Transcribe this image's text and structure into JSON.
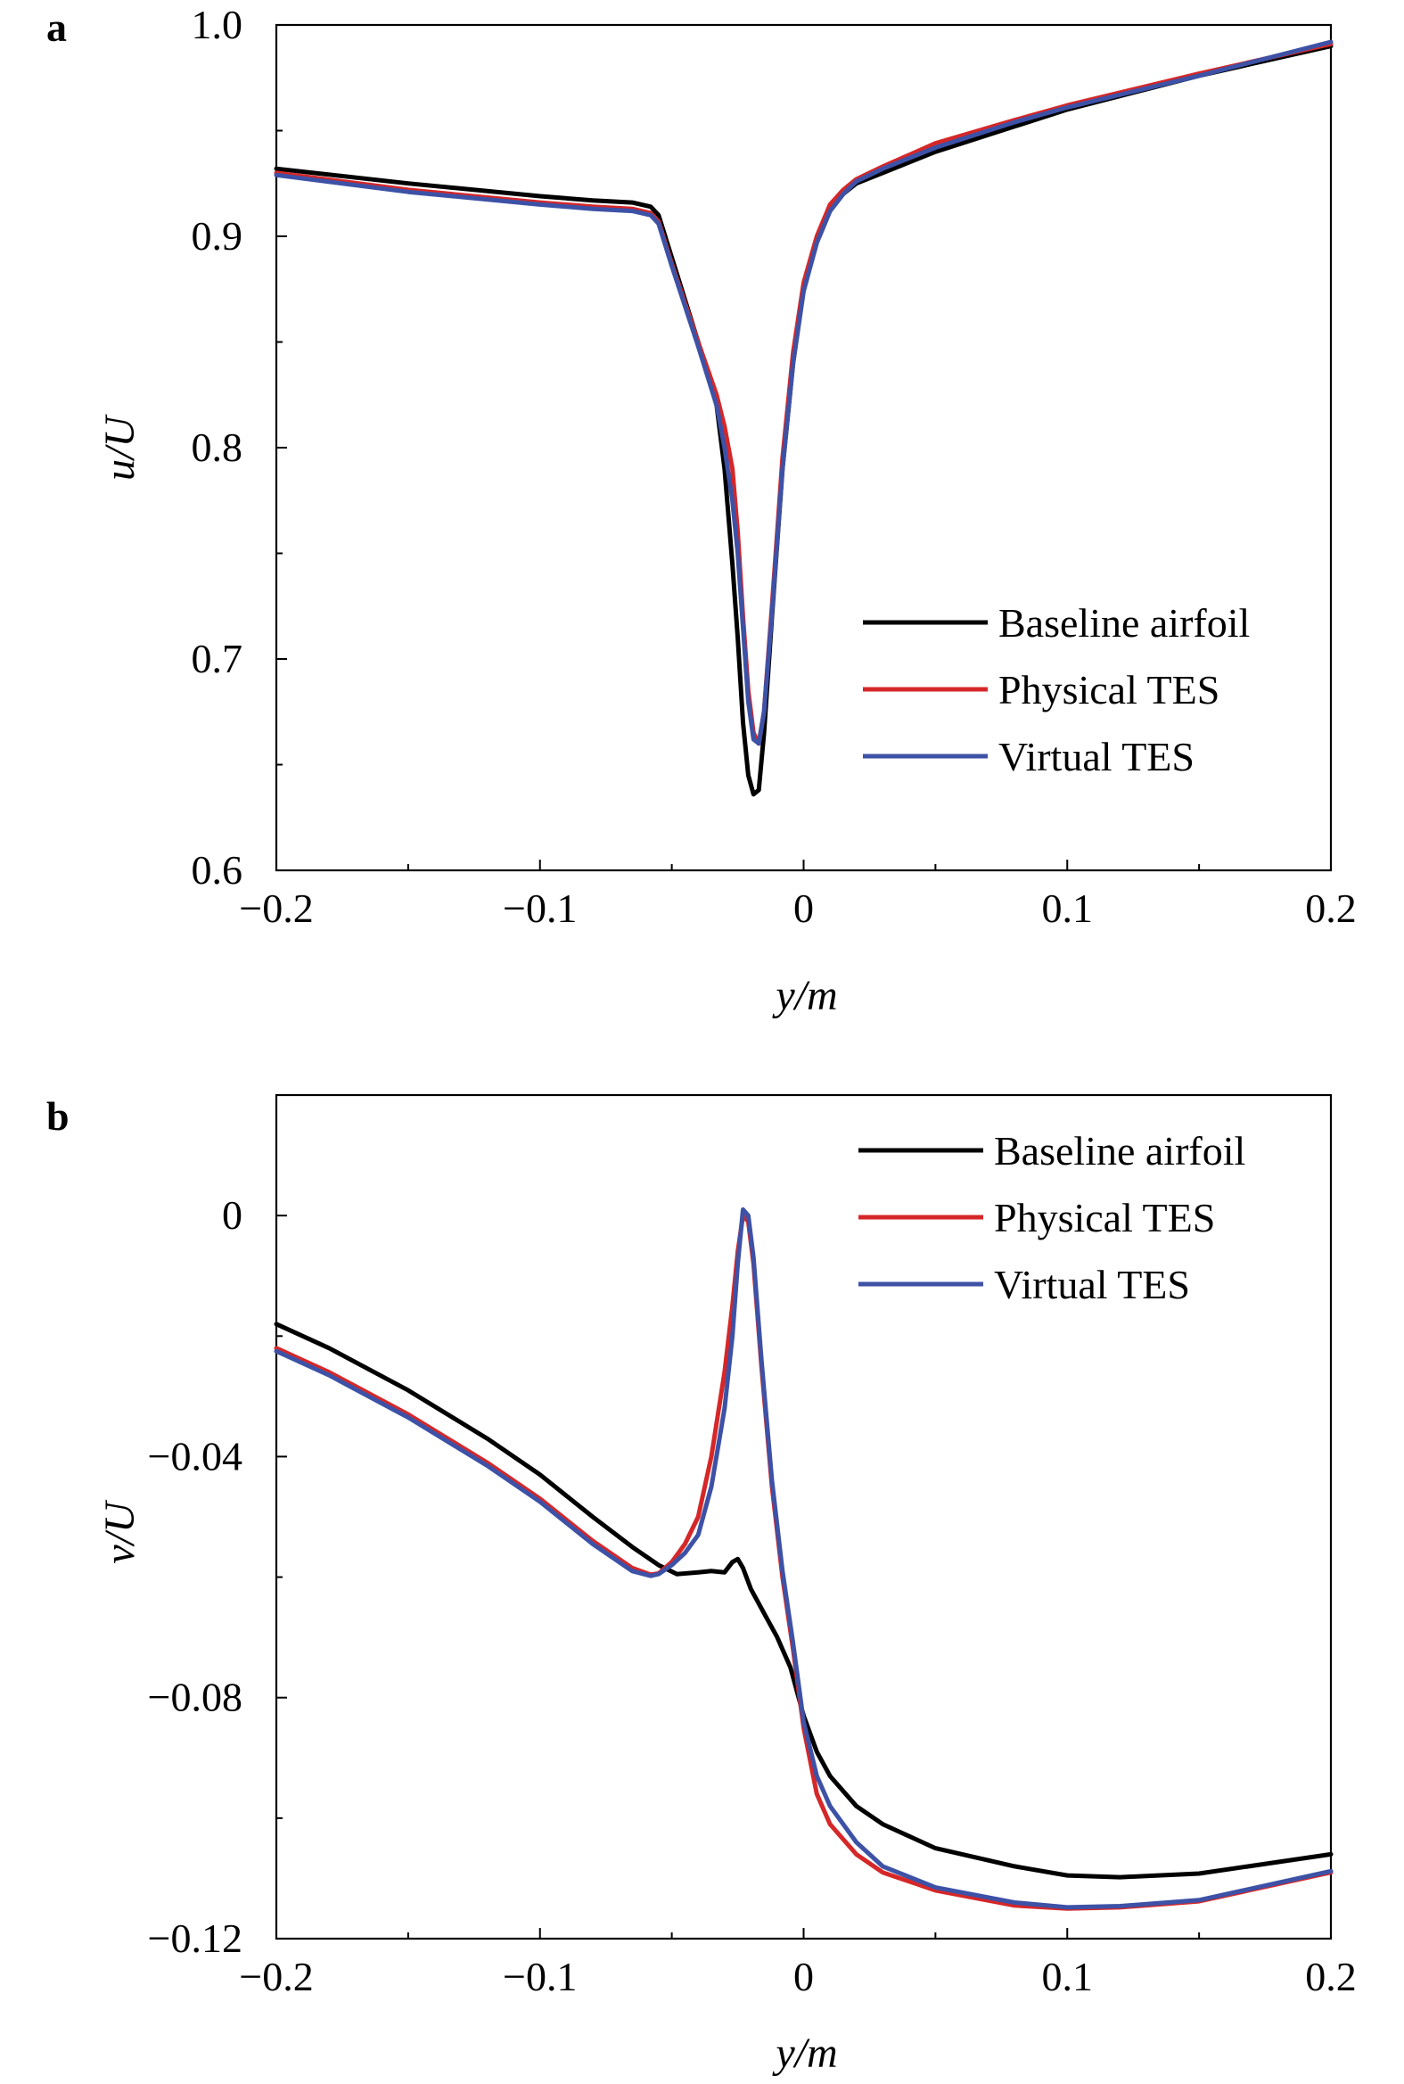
{
  "chart_data": [
    {
      "panel_label": "a",
      "type": "line",
      "xlabel": "y/m",
      "ylabel": "u/U",
      "xlim": [
        -0.2,
        0.2
      ],
      "ylim": [
        0.6,
        1.0
      ],
      "xticks": [
        -0.2,
        -0.1,
        0,
        0.1,
        0.2
      ],
      "xtick_labels": [
        "−0.2",
        "−0.1",
        "0",
        "0.1",
        "0.2"
      ],
      "yticks": [
        0.6,
        0.7,
        0.8,
        0.9,
        1.0
      ],
      "ytick_labels": [
        "0.6",
        "0.7",
        "0.8",
        "0.9",
        "1.0"
      ],
      "grid": false,
      "legend_position": "lower-right",
      "series": [
        {
          "name": "Baseline airfoil",
          "color": "#000000",
          "x": [
            -0.2,
            -0.15,
            -0.1,
            -0.08,
            -0.065,
            -0.058,
            -0.055,
            -0.05,
            -0.04,
            -0.033,
            -0.03,
            -0.027,
            -0.025,
            -0.023,
            -0.021,
            -0.019,
            -0.017,
            -0.015,
            -0.012,
            -0.008,
            -0.004,
            0,
            0.005,
            0.01,
            0.015,
            0.02,
            0.03,
            0.05,
            0.08,
            0.1,
            0.15,
            0.2
          ],
          "y": [
            0.932,
            0.925,
            0.919,
            0.917,
            0.916,
            0.914,
            0.91,
            0.89,
            0.85,
            0.82,
            0.79,
            0.745,
            0.71,
            0.67,
            0.645,
            0.636,
            0.638,
            0.665,
            0.72,
            0.79,
            0.84,
            0.875,
            0.897,
            0.912,
            0.92,
            0.925,
            0.93,
            0.94,
            0.952,
            0.96,
            0.976,
            0.99
          ]
        },
        {
          "name": "Physical TES",
          "color": "#d62728",
          "x": [
            -0.2,
            -0.15,
            -0.1,
            -0.08,
            -0.065,
            -0.058,
            -0.055,
            -0.05,
            -0.04,
            -0.033,
            -0.03,
            -0.027,
            -0.025,
            -0.023,
            -0.021,
            -0.019,
            -0.017,
            -0.015,
            -0.012,
            -0.008,
            -0.004,
            0,
            0.005,
            0.01,
            0.015,
            0.02,
            0.03,
            0.05,
            0.08,
            0.1,
            0.15,
            0.2
          ],
          "y": [
            0.93,
            0.922,
            0.916,
            0.914,
            0.913,
            0.911,
            0.907,
            0.887,
            0.85,
            0.825,
            0.81,
            0.79,
            0.76,
            0.72,
            0.685,
            0.665,
            0.66,
            0.675,
            0.725,
            0.795,
            0.845,
            0.878,
            0.9,
            0.915,
            0.922,
            0.927,
            0.933,
            0.944,
            0.955,
            0.962,
            0.977,
            0.991
          ]
        },
        {
          "name": "Virtual TES",
          "color": "#3d52a6",
          "x": [
            -0.2,
            -0.15,
            -0.1,
            -0.08,
            -0.065,
            -0.058,
            -0.055,
            -0.05,
            -0.04,
            -0.033,
            -0.03,
            -0.027,
            -0.025,
            -0.023,
            -0.021,
            -0.019,
            -0.017,
            -0.015,
            -0.012,
            -0.008,
            -0.004,
            0,
            0.005,
            0.01,
            0.015,
            0.02,
            0.03,
            0.05,
            0.08,
            0.1,
            0.15,
            0.2
          ],
          "y": [
            0.929,
            0.921,
            0.915,
            0.913,
            0.912,
            0.91,
            0.906,
            0.886,
            0.848,
            0.82,
            0.8,
            0.775,
            0.75,
            0.715,
            0.68,
            0.662,
            0.66,
            0.675,
            0.722,
            0.79,
            0.84,
            0.874,
            0.897,
            0.912,
            0.92,
            0.926,
            0.932,
            0.942,
            0.954,
            0.961,
            0.976,
            0.992
          ]
        }
      ]
    },
    {
      "panel_label": "b",
      "type": "line",
      "xlabel": "y/m",
      "ylabel": "v/U",
      "xlim": [
        -0.2,
        0.2
      ],
      "ylim": [
        -0.12,
        0.02
      ],
      "xticks": [
        -0.2,
        -0.1,
        0,
        0.1,
        0.2
      ],
      "xtick_labels": [
        "−0.2",
        "−0.1",
        "0",
        "0.1",
        "0.2"
      ],
      "yticks": [
        -0.12,
        -0.08,
        -0.04,
        0
      ],
      "ytick_labels": [
        "−0.12",
        "−0.08",
        "−0.04",
        "0"
      ],
      "grid": false,
      "legend_position": "top-right",
      "series": [
        {
          "name": "Baseline airfoil",
          "color": "#000000",
          "x": [
            -0.2,
            -0.18,
            -0.15,
            -0.12,
            -0.1,
            -0.08,
            -0.065,
            -0.055,
            -0.048,
            -0.04,
            -0.035,
            -0.03,
            -0.027,
            -0.025,
            -0.023,
            -0.02,
            -0.015,
            -0.01,
            -0.005,
            0,
            0.005,
            0.01,
            0.02,
            0.03,
            0.05,
            0.08,
            0.1,
            0.12,
            0.15,
            0.2
          ],
          "y": [
            -0.018,
            -0.022,
            -0.029,
            -0.037,
            -0.043,
            -0.05,
            -0.055,
            -0.058,
            -0.0595,
            -0.0592,
            -0.059,
            -0.0592,
            -0.0575,
            -0.057,
            -0.0585,
            -0.062,
            -0.066,
            -0.07,
            -0.075,
            -0.083,
            -0.089,
            -0.093,
            -0.098,
            -0.101,
            -0.105,
            -0.108,
            -0.1095,
            -0.1098,
            -0.1092,
            -0.106
          ]
        },
        {
          "name": "Physical TES",
          "color": "#d62728",
          "x": [
            -0.2,
            -0.18,
            -0.15,
            -0.12,
            -0.1,
            -0.08,
            -0.065,
            -0.058,
            -0.055,
            -0.05,
            -0.045,
            -0.04,
            -0.035,
            -0.03,
            -0.027,
            -0.025,
            -0.023,
            -0.021,
            -0.019,
            -0.016,
            -0.012,
            -0.008,
            -0.004,
            0,
            0.005,
            0.01,
            0.02,
            0.03,
            0.05,
            0.08,
            0.1,
            0.12,
            0.15,
            0.2
          ],
          "y": [
            -0.022,
            -0.026,
            -0.033,
            -0.041,
            -0.047,
            -0.054,
            -0.0585,
            -0.0596,
            -0.0594,
            -0.0575,
            -0.0545,
            -0.05,
            -0.04,
            -0.026,
            -0.015,
            -0.006,
            0.0,
            -0.001,
            -0.008,
            -0.025,
            -0.045,
            -0.06,
            -0.072,
            -0.085,
            -0.096,
            -0.101,
            -0.106,
            -0.109,
            -0.112,
            -0.1145,
            -0.115,
            -0.1148,
            -0.1138,
            -0.109
          ]
        },
        {
          "name": "Virtual TES",
          "color": "#3d52a6",
          "x": [
            -0.2,
            -0.18,
            -0.15,
            -0.12,
            -0.1,
            -0.08,
            -0.065,
            -0.058,
            -0.055,
            -0.05,
            -0.045,
            -0.04,
            -0.035,
            -0.03,
            -0.027,
            -0.025,
            -0.023,
            -0.021,
            -0.019,
            -0.016,
            -0.012,
            -0.008,
            -0.004,
            0,
            0.005,
            0.01,
            0.02,
            0.03,
            0.05,
            0.08,
            0.1,
            0.12,
            0.15,
            0.2
          ],
          "y": [
            -0.0225,
            -0.0265,
            -0.0335,
            -0.0415,
            -0.0475,
            -0.0545,
            -0.059,
            -0.0598,
            -0.0595,
            -0.058,
            -0.056,
            -0.053,
            -0.045,
            -0.032,
            -0.02,
            -0.008,
            0.001,
            0.0,
            -0.007,
            -0.024,
            -0.044,
            -0.059,
            -0.071,
            -0.084,
            -0.093,
            -0.098,
            -0.104,
            -0.108,
            -0.1115,
            -0.114,
            -0.1148,
            -0.1146,
            -0.1136,
            -0.1088
          ]
        }
      ]
    }
  ]
}
